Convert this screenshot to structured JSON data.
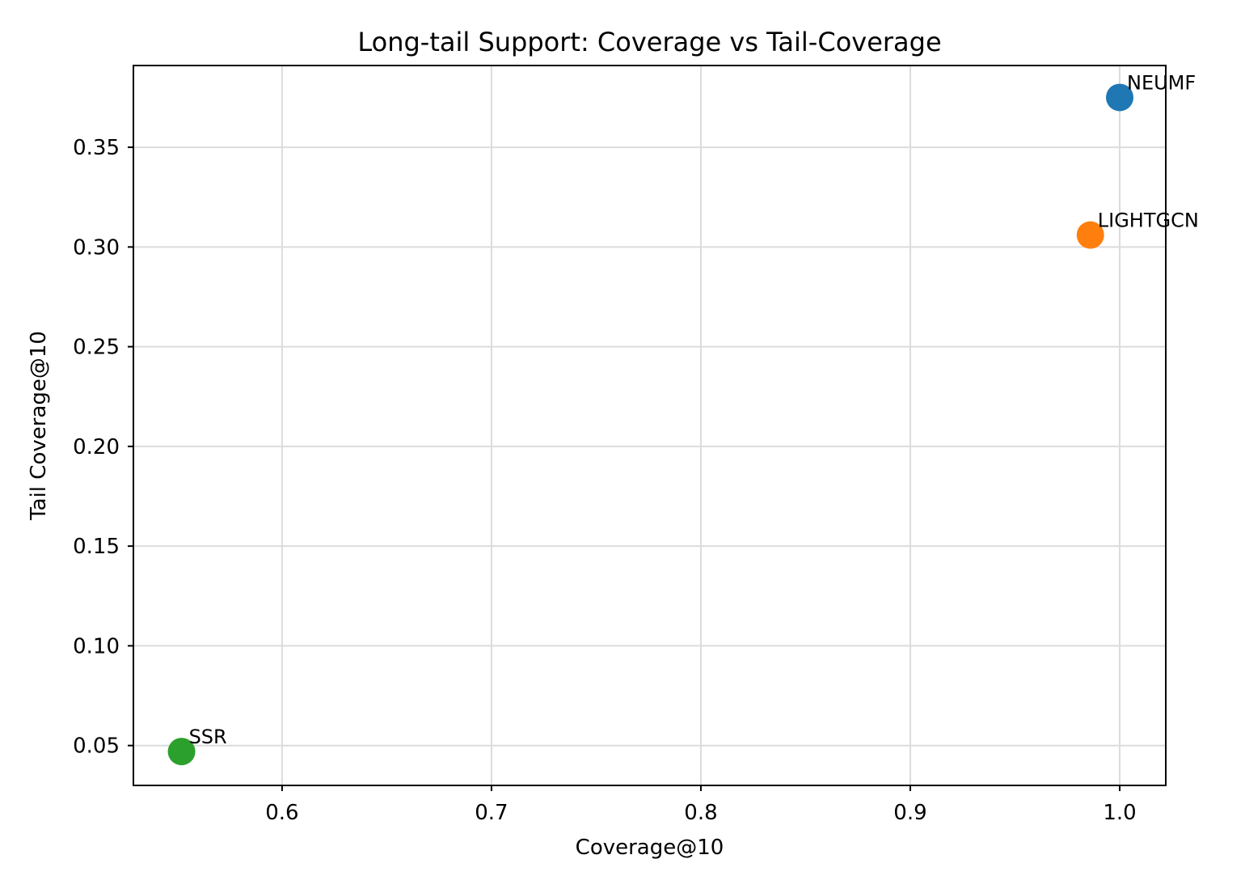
{
  "chart_data": {
    "type": "scatter",
    "title": "Long-tail Support: Coverage vs Tail-Coverage",
    "xlabel": "Coverage@10",
    "ylabel": "Tail Coverage@10",
    "xlim": [
      0.529,
      1.022
    ],
    "ylim": [
      0.03,
      0.391
    ],
    "xticks": [
      0.6,
      0.7,
      0.8,
      0.9,
      1.0
    ],
    "xtick_labels": [
      "0.6",
      "0.7",
      "0.8",
      "0.9",
      "1.0"
    ],
    "yticks": [
      0.05,
      0.1,
      0.15,
      0.2,
      0.25,
      0.3,
      0.35
    ],
    "ytick_labels": [
      "0.05",
      "0.10",
      "0.15",
      "0.20",
      "0.25",
      "0.30",
      "0.35"
    ],
    "grid": true,
    "legend": "none",
    "points": [
      {
        "label": "NEUMF",
        "x": 1.0,
        "y": 0.375,
        "color": "#1f77b4"
      },
      {
        "label": "LIGHTGCN",
        "x": 0.986,
        "y": 0.306,
        "color": "#ff7f0e"
      },
      {
        "label": "SSR",
        "x": 0.552,
        "y": 0.047,
        "color": "#2ca02c"
      }
    ]
  }
}
